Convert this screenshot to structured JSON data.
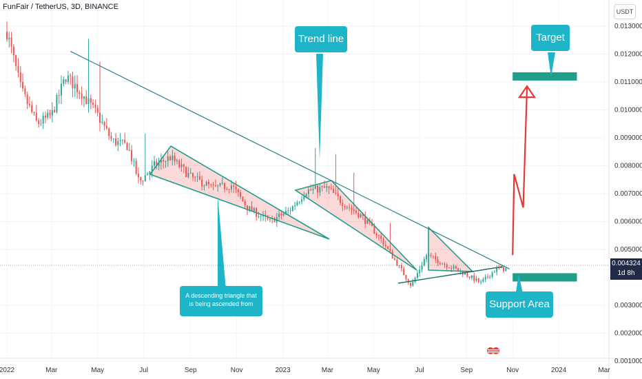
{
  "header": {
    "symbol_title": "FunFair / TetherUS, 3D, BINANCE",
    "unit": "USDT"
  },
  "current_price": {
    "value": "0.004324",
    "countdown": "1d 8h"
  },
  "annotations": {
    "trend_line": "Trend line",
    "target": "Target",
    "support_area": "Support Area",
    "triangle_note": "A descending triangle that is being ascended from"
  },
  "colors": {
    "up": "#26a69a",
    "down": "#ef5350",
    "trend": "#2a7f8f",
    "zone": "#1f9e8a",
    "arrow": "#e53935",
    "callout": "#1fb5c8"
  },
  "chart_data": {
    "type": "candlestick",
    "title": "FunFair / TetherUS, 3D, BINANCE",
    "x_tick_labels": [
      "2022",
      "Mar",
      "May",
      "Jul",
      "Sep",
      "Nov",
      "2023",
      "Mar",
      "May",
      "Jul",
      "Sep",
      "Nov",
      "2024",
      "Mar"
    ],
    "y_tick_labels": [
      "0.013000",
      "0.012000",
      "0.011000",
      "0.010000",
      "0.009000",
      "0.008000",
      "0.007000",
      "0.006000",
      "0.005000",
      "0.003000",
      "0.002000",
      "0.001000"
    ],
    "ylim": [
      0.0008,
      0.0143
    ],
    "price_path": [
      [
        "2022-01-01",
        0.0128
      ],
      [
        "2022-01-20",
        0.0107
      ],
      [
        "2022-02-10",
        0.0095
      ],
      [
        "2022-03-01",
        0.0098
      ],
      [
        "2022-03-20",
        0.0112
      ],
      [
        "2022-04-10",
        0.0106
      ],
      [
        "2022-05-01",
        0.0098
      ],
      [
        "2022-05-20",
        0.0089
      ],
      [
        "2022-06-10",
        0.0087
      ],
      [
        "2022-06-25",
        0.0074
      ],
      [
        "2022-07-15",
        0.008
      ],
      [
        "2022-08-05",
        0.0083
      ],
      [
        "2022-09-01",
        0.0076
      ],
      [
        "2022-10-01",
        0.0072
      ],
      [
        "2022-10-25",
        0.0073
      ],
      [
        "2022-11-15",
        0.0065
      ],
      [
        "2022-12-15",
        0.006
      ],
      [
        "2023-01-10",
        0.0064
      ],
      [
        "2023-02-01",
        0.0071
      ],
      [
        "2023-03-01",
        0.0072
      ],
      [
        "2023-03-20",
        0.0067
      ],
      [
        "2023-04-15",
        0.0062
      ],
      [
        "2023-05-10",
        0.0054
      ],
      [
        "2023-06-01",
        0.0045
      ],
      [
        "2023-06-20",
        0.0037
      ],
      [
        "2023-07-10",
        0.0048
      ],
      [
        "2023-08-01",
        0.0045
      ],
      [
        "2023-08-25",
        0.0042
      ],
      [
        "2023-09-20",
        0.0038
      ],
      [
        "2023-10-10",
        0.0043
      ],
      [
        "2023-10-25",
        0.0043
      ]
    ],
    "trend_line": {
      "from": [
        "2022-03-26",
        0.0121
      ],
      "to": [
        "2023-10-28",
        0.0043
      ]
    },
    "target_zone": {
      "y": 0.0112,
      "x_range": [
        "2023-11-01",
        "2024-01-25"
      ]
    },
    "support_zone": {
      "y": 0.004,
      "x_range": [
        "2023-11-01",
        "2024-01-25"
      ]
    },
    "projection": [
      [
        "2023-11-01",
        0.0048
      ],
      [
        "2023-11-03",
        0.0077
      ],
      [
        "2023-11-15",
        0.0065
      ],
      [
        "2023-11-20",
        0.0108
      ]
    ]
  }
}
